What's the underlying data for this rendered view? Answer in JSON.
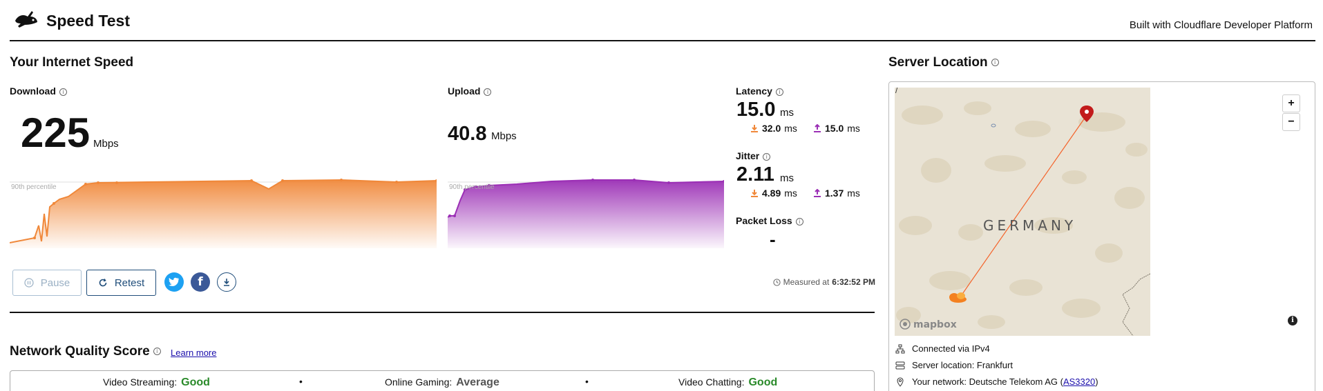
{
  "header": {
    "app_title": "Speed Test",
    "built_with": "Built with Cloudflare Developer Platform",
    "logo_icon": "rabbit-logo-icon"
  },
  "speed": {
    "title": "Your Internet Speed",
    "download": {
      "label": "Download",
      "value": "225",
      "unit": "Mbps",
      "percentile_label": "90th percentile"
    },
    "upload": {
      "label": "Upload",
      "value": "40.8",
      "unit": "Mbps",
      "percentile_label": "90th percentile"
    },
    "latency": {
      "label": "Latency",
      "value": "15.0",
      "unit": "ms",
      "down": "32.0",
      "down_unit": "ms",
      "up": "15.0",
      "up_unit": "ms"
    },
    "jitter": {
      "label": "Jitter",
      "value": "2.11",
      "unit": "ms",
      "down": "4.89",
      "down_unit": "ms",
      "up": "1.37",
      "up_unit": "ms"
    },
    "packet_loss": {
      "label": "Packet Loss",
      "value": "-"
    }
  },
  "controls": {
    "pause_label": "Pause",
    "retest_label": "Retest",
    "share_icons": [
      "twitter-icon",
      "facebook-icon",
      "download-icon"
    ],
    "measured_prefix": "Measured at",
    "measured_time": "6:32:52 PM"
  },
  "quality": {
    "title": "Network Quality Score",
    "learn_more": "Learn more",
    "items": [
      {
        "label": "Video Streaming:",
        "value": "Good"
      },
      {
        "label": "Online Gaming:",
        "value": "Average"
      },
      {
        "label": "Video Chatting:",
        "value": "Good"
      }
    ],
    "separator": "•"
  },
  "server": {
    "title": "Server Location",
    "map_country": "GERMANY",
    "map_brand": "mapbox",
    "map_corner_mark": "/",
    "zoom_in": "+",
    "zoom_out": "−",
    "info_glyph": "i",
    "connected_via": "Connected via IPv4",
    "server_location": "Server location: Frankfurt",
    "network_prefix": "Your network: Deutsche Telekom AG (",
    "network_asn": "AS3320",
    "network_suffix": ")"
  },
  "colors": {
    "download": "#f0883a",
    "upload": "#9b2fb5",
    "good": "#2a8a2a",
    "twitter": "#1da1f2",
    "facebook": "#3b5998",
    "button_blue": "#1f4d7a",
    "pin": "#c21b1b"
  }
}
